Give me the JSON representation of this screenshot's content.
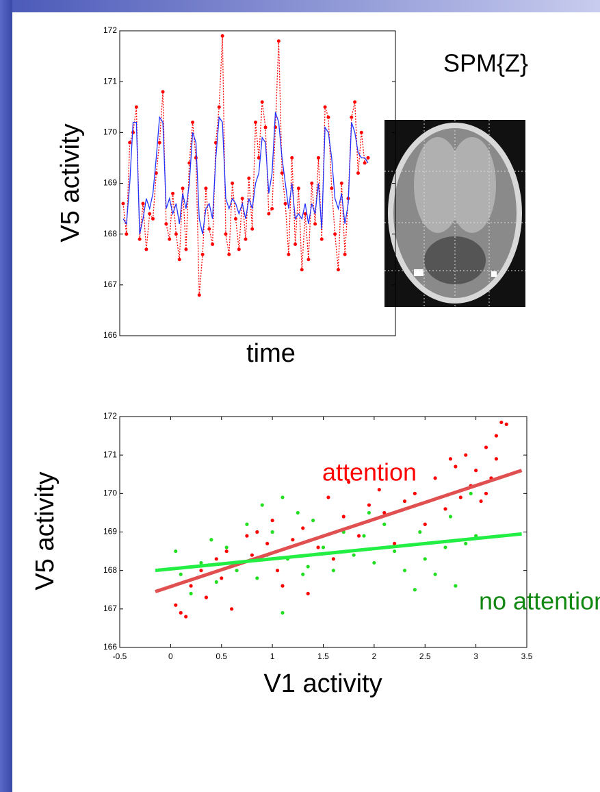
{
  "brain_image": {
    "label": "SPM{Z}"
  },
  "chart_data": [
    {
      "type": "line",
      "ylabel": "V5 activity",
      "xlabel": "time",
      "ylim": [
        166,
        172
      ],
      "yticks": [
        166,
        167,
        168,
        169,
        170,
        171,
        172
      ],
      "series": [
        {
          "color": "#ff0000",
          "marker": true,
          "dashed": true,
          "values": [
            168.6,
            168.0,
            169.8,
            170.0,
            170.5,
            167.9,
            168.6,
            167.7,
            168.4,
            168.3,
            169.2,
            169.8,
            170.8,
            168.2,
            167.9,
            168.8,
            168.0,
            167.5,
            168.9,
            167.7,
            169.4,
            170.2,
            169.5,
            166.8,
            167.6,
            168.9,
            168.1,
            167.8,
            169.8,
            170.5,
            171.9,
            168.0,
            167.6,
            169.0,
            168.3,
            167.7,
            168.7,
            167.9,
            169.1,
            168.1,
            170.2,
            169.5,
            170.6,
            170.1,
            168.4,
            168.5,
            170.1,
            171.8,
            169.2,
            168.6,
            167.6,
            169.5,
            167.8,
            168.9,
            167.3,
            168.4,
            167.5,
            169.0,
            168.2,
            169.5,
            167.9,
            170.5,
            170.3,
            168.9,
            168.0,
            167.3,
            169.0,
            167.6,
            168.7,
            170.3,
            170.6,
            169.2,
            170.0,
            169.4,
            169.5
          ]
        },
        {
          "color": "#2233ff",
          "marker": false,
          "dashed": false,
          "values": [
            168.3,
            168.2,
            169.0,
            170.2,
            170.2,
            168.0,
            168.3,
            168.7,
            168.5,
            168.8,
            169.5,
            170.3,
            170.2,
            168.5,
            168.7,
            168.4,
            168.6,
            168.2,
            168.8,
            168.5,
            169.0,
            170.0,
            169.8,
            168.3,
            168.0,
            168.5,
            168.6,
            168.3,
            169.5,
            170.3,
            170.2,
            168.7,
            168.5,
            168.7,
            168.6,
            168.4,
            168.6,
            168.3,
            168.7,
            168.5,
            169.0,
            169.2,
            169.9,
            169.8,
            168.8,
            169.2,
            170.4,
            170.2,
            169.5,
            169.0,
            168.5,
            169.0,
            168.3,
            168.4,
            168.3,
            168.6,
            168.2,
            168.6,
            168.4,
            169.0,
            168.1,
            170.1,
            170.0,
            169.5,
            168.7,
            168.5,
            168.8,
            168.2,
            168.6,
            170.2,
            170.0,
            169.6,
            169.5,
            169.5,
            169.4
          ]
        }
      ]
    },
    {
      "type": "scatter",
      "ylabel": "V5 activity",
      "xlabel": "V1 activity",
      "xlim": [
        -0.5,
        3.5
      ],
      "xticks": [
        -0.5,
        0,
        0.5,
        1,
        1.5,
        2,
        2.5,
        3,
        3.5
      ],
      "ylim": [
        166,
        172
      ],
      "yticks": [
        166,
        167,
        168,
        169,
        170,
        171,
        172
      ],
      "series": [
        {
          "name": "attention",
          "color": "#ff0000",
          "x": [
            0.05,
            0.1,
            0.15,
            0.2,
            0.3,
            0.35,
            0.45,
            0.5,
            0.55,
            0.6,
            0.7,
            0.75,
            0.8,
            0.85,
            0.95,
            1.0,
            1.05,
            1.1,
            1.2,
            1.3,
            1.35,
            1.45,
            1.55,
            1.6,
            1.7,
            1.75,
            1.85,
            1.95,
            2.05,
            2.1,
            2.2,
            2.3,
            2.4,
            2.5,
            2.6,
            2.7,
            2.8,
            2.85,
            2.9,
            2.95,
            3.0,
            3.05,
            3.1,
            3.15,
            3.2,
            3.25,
            3.3,
            3.2,
            3.1,
            2.75
          ],
          "values": [
            167.1,
            166.9,
            166.8,
            167.6,
            168.0,
            167.3,
            168.3,
            167.8,
            168.5,
            167.0,
            168.2,
            168.9,
            168.4,
            169.0,
            168.7,
            169.3,
            168.0,
            167.6,
            168.8,
            169.1,
            167.4,
            168.6,
            169.9,
            168.3,
            169.4,
            170.3,
            168.9,
            169.7,
            170.1,
            169.5,
            168.7,
            169.8,
            170.0,
            169.2,
            170.4,
            169.6,
            170.7,
            169.9,
            171.0,
            170.2,
            170.6,
            169.8,
            171.2,
            170.4,
            171.5,
            171.85,
            171.8,
            170.9,
            170.0,
            170.9
          ],
          "fit": {
            "x": [
              -0.15,
              3.45
            ],
            "values": [
              167.45,
              170.6
            ],
            "color": "#e05050"
          }
        },
        {
          "name": "no attention",
          "color": "#22dd22",
          "label_color": "#118811",
          "x": [
            0.05,
            0.1,
            0.2,
            0.3,
            0.4,
            0.45,
            0.55,
            0.65,
            0.75,
            0.85,
            0.9,
            0.95,
            1.0,
            1.1,
            1.1,
            1.15,
            1.25,
            1.35,
            1.4,
            1.5,
            1.6,
            1.7,
            1.8,
            1.9,
            2.0,
            2.1,
            2.2,
            2.3,
            2.4,
            2.45,
            2.5,
            2.6,
            2.7,
            2.75,
            2.8,
            2.9,
            2.95,
            3.0,
            1.95,
            1.3
          ],
          "values": [
            168.5,
            167.9,
            167.4,
            168.2,
            168.8,
            167.7,
            168.6,
            168.0,
            169.2,
            167.8,
            169.7,
            168.4,
            169.0,
            169.9,
            166.9,
            168.3,
            169.5,
            168.1,
            169.3,
            168.6,
            168.0,
            169.0,
            168.4,
            168.9,
            168.2,
            169.2,
            168.5,
            168.0,
            167.5,
            169.0,
            168.3,
            167.9,
            168.6,
            169.4,
            167.6,
            168.7,
            170.0,
            168.9,
            169.5,
            167.9
          ],
          "fit": {
            "x": [
              -0.15,
              3.45
            ],
            "values": [
              168.0,
              168.95
            ],
            "color": "#22ee44"
          }
        }
      ]
    }
  ]
}
